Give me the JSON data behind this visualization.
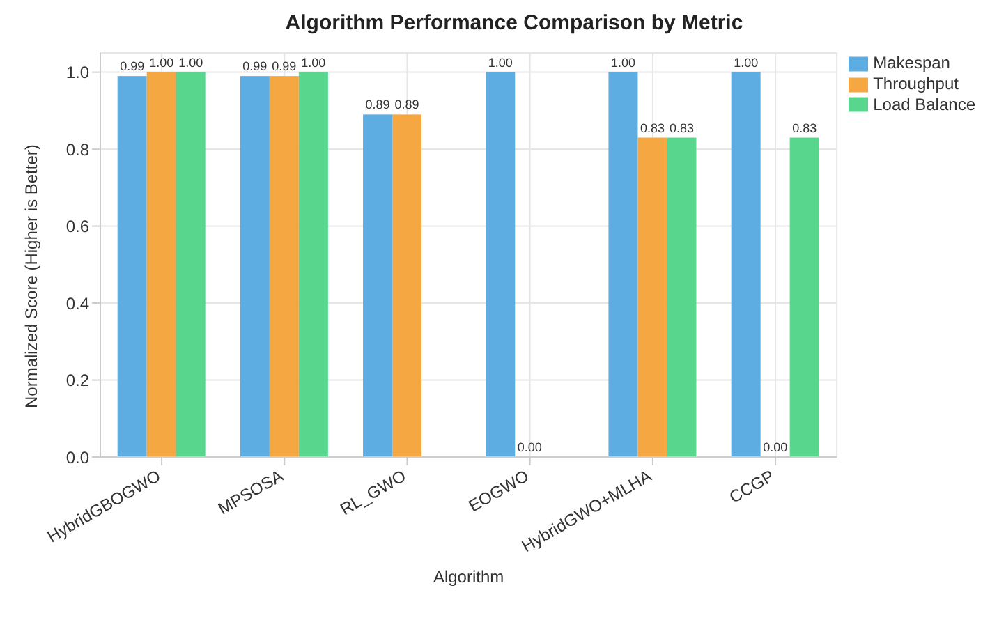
{
  "chart_data": {
    "type": "bar",
    "title": "Algorithm Performance Comparison by Metric",
    "xlabel": "Algorithm",
    "ylabel": "Normalized Score (Higher is Better)",
    "categories": [
      "HybridGBOGWO",
      "MPSOSA",
      "RL_GWO",
      "EOGWO",
      "HybridGWO+MLHA",
      "CCGP"
    ],
    "series": [
      {
        "name": "Makespan",
        "color": "#5dade2",
        "values": [
          0.99,
          0.99,
          0.89,
          1.0,
          1.0,
          1.0
        ],
        "value_labels": [
          "0.99",
          "0.99",
          "0.89",
          "1.00",
          "1.00",
          "1.00"
        ]
      },
      {
        "name": "Throughput",
        "color": "#f5a742",
        "values": [
          1.0,
          0.99,
          0.89,
          0.0,
          0.83,
          0.0
        ],
        "value_labels": [
          "1.00",
          "0.99",
          "0.89",
          "0.00",
          "0.83",
          "0.00"
        ]
      },
      {
        "name": "Load Balance",
        "color": "#58d68d",
        "values": [
          1.0,
          1.0,
          null,
          null,
          0.83,
          0.83
        ],
        "value_labels": [
          "1.00",
          "1.00",
          null,
          null,
          "0.83",
          "0.83"
        ]
      }
    ],
    "ylim": [
      0,
      1.05
    ],
    "yticks": [
      {
        "value": 0,
        "label": "0.0"
      },
      {
        "value": 0.2,
        "label": "0.2"
      },
      {
        "value": 0.4,
        "label": "0.4"
      },
      {
        "value": 0.6,
        "label": "0.6"
      },
      {
        "value": 0.8,
        "label": "0.8"
      },
      {
        "value": 1.0,
        "label": "1.0"
      }
    ],
    "grid": true,
    "legend": "top right"
  }
}
